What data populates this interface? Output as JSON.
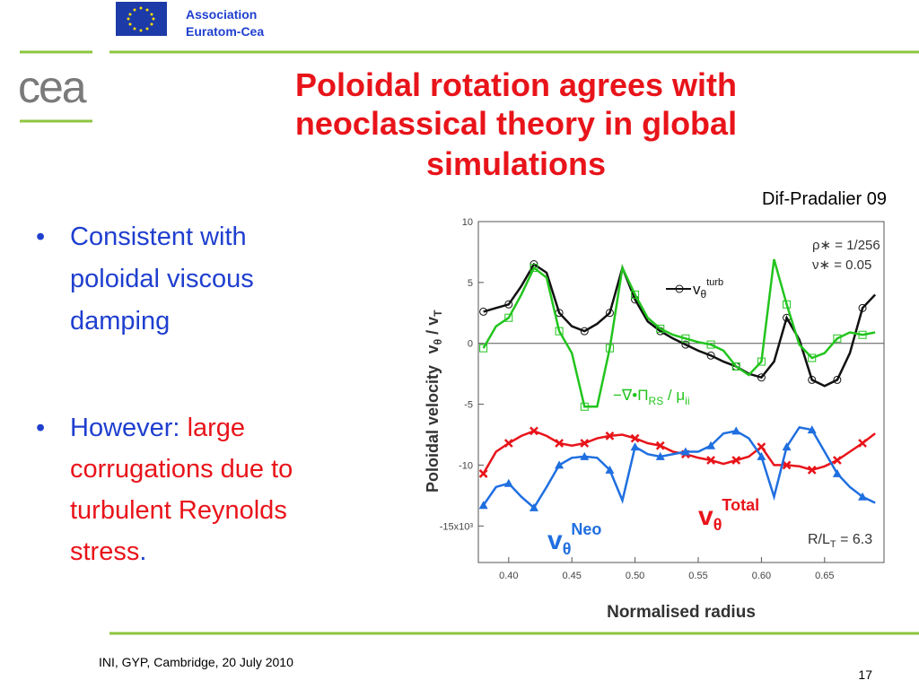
{
  "header": {
    "association": [
      "Association",
      "Euratom-Cea"
    ],
    "logo": "cea"
  },
  "title": [
    "Poloidal rotation agrees with",
    "neoclassical theory in global",
    "simulations"
  ],
  "citation": "Dif-Pradalier 09",
  "bullets": [
    {
      "lines": [
        "Consistent with",
        "poloidal viscous",
        "damping"
      ]
    },
    {
      "lead": "However:",
      "emphasis": [
        "large",
        "corrugations due to",
        "turbulent Reynolds",
        "stress"
      ],
      "tail": "."
    }
  ],
  "footer": {
    "event": "INI, GYP, Cambridge, 20 July 2010",
    "page": "17"
  },
  "chart_data": {
    "type": "line",
    "xlabel": "Normalised radius",
    "ylabel": "Poloidal velocity",
    "ylabel_symbol": [
      "v",
      "θ",
      " / v",
      "T"
    ],
    "x": [
      0.38,
      0.39,
      0.4,
      0.41,
      0.42,
      0.43,
      0.44,
      0.45,
      0.46,
      0.47,
      0.48,
      0.49,
      0.5,
      0.51,
      0.52,
      0.53,
      0.54,
      0.55,
      0.56,
      0.57,
      0.58,
      0.59,
      0.6,
      0.61,
      0.62,
      0.63,
      0.64,
      0.65,
      0.66,
      0.67,
      0.68,
      0.69
    ],
    "series": [
      {
        "label": [
          "v",
          "θ",
          "turb"
        ],
        "color": "#111111",
        "marker": "circle",
        "values": [
          2.6,
          2.9,
          3.2,
          4.7,
          6.5,
          5.8,
          2.5,
          1.4,
          1.0,
          1.6,
          2.5,
          6.2,
          3.6,
          1.8,
          1.0,
          0.4,
          -0.1,
          -0.6,
          -1.0,
          -1.5,
          -1.9,
          -2.5,
          -2.8,
          -1.5,
          2.1,
          0.3,
          -3.0,
          -3.5,
          -3.0,
          -0.8,
          2.9,
          4.0
        ]
      },
      {
        "label": [
          "−∇•Π",
          "RS",
          " / μ",
          "ii"
        ],
        "color": "#22c41e",
        "marker": "square",
        "values": [
          -0.4,
          1.4,
          2.1,
          4.0,
          6.2,
          5.4,
          1.0,
          -0.8,
          -5.2,
          -5.2,
          -0.4,
          6.2,
          4.0,
          2.1,
          1.2,
          0.7,
          0.4,
          0.1,
          -0.1,
          -0.6,
          -1.9,
          -2.6,
          -1.5,
          6.9,
          3.2,
          -0.1,
          -1.2,
          -0.8,
          0.4,
          0.9,
          0.7,
          0.9
        ]
      },
      {
        "label": [
          "v",
          "θ",
          "Total"
        ],
        "color": "#e8141a",
        "marker": "cross",
        "values": [
          -10.7,
          -8.9,
          -8.2,
          -7.6,
          -7.2,
          -7.6,
          -8.2,
          -8.4,
          -8.2,
          -7.8,
          -7.6,
          -7.5,
          -7.8,
          -8.2,
          -8.4,
          -8.9,
          -9.1,
          -9.4,
          -9.6,
          -9.9,
          -9.6,
          -9.3,
          -8.5,
          -10.0,
          -10.0,
          -10.1,
          -10.4,
          -10.1,
          -9.6,
          -8.9,
          -8.2,
          -7.4
        ]
      },
      {
        "label": [
          "v",
          "θ",
          "Neo"
        ],
        "color": "#1f6fe0",
        "marker": "triangle",
        "values": [
          -13.3,
          -11.8,
          -11.5,
          -12.6,
          -13.5,
          -11.8,
          -10.0,
          -9.4,
          -9.3,
          -9.4,
          -10.4,
          -12.9,
          -8.5,
          -9.1,
          -9.3,
          -9.1,
          -8.9,
          -8.9,
          -8.4,
          -7.4,
          -7.2,
          -7.8,
          -9.3,
          -12.6,
          -8.5,
          -6.9,
          -7.1,
          -8.9,
          -10.7,
          -11.8,
          -12.6,
          -13.1
        ]
      }
    ],
    "xlim": [
      0.376,
      0.697
    ],
    "ylim": [
      -18,
      10
    ],
    "xticks": [
      {
        "value": 0.4,
        "label": "0.40"
      },
      {
        "value": 0.45,
        "label": "0.45"
      },
      {
        "value": 0.5,
        "label": "0.50"
      },
      {
        "value": 0.55,
        "label": "0.55"
      },
      {
        "value": 0.6,
        "label": "0.60"
      },
      {
        "value": 0.65,
        "label": "0.65"
      }
    ],
    "yticks": [
      10,
      5,
      0,
      -5,
      -10,
      {
        "value": -15,
        "label": "-15x10³"
      }
    ],
    "zero_line": true,
    "annotations": {
      "rho": "ρ∗ = 1/256",
      "nu": "ν∗ = 0.05",
      "rlt": [
        "R/L",
        "T",
        " = 6.3"
      ]
    }
  }
}
